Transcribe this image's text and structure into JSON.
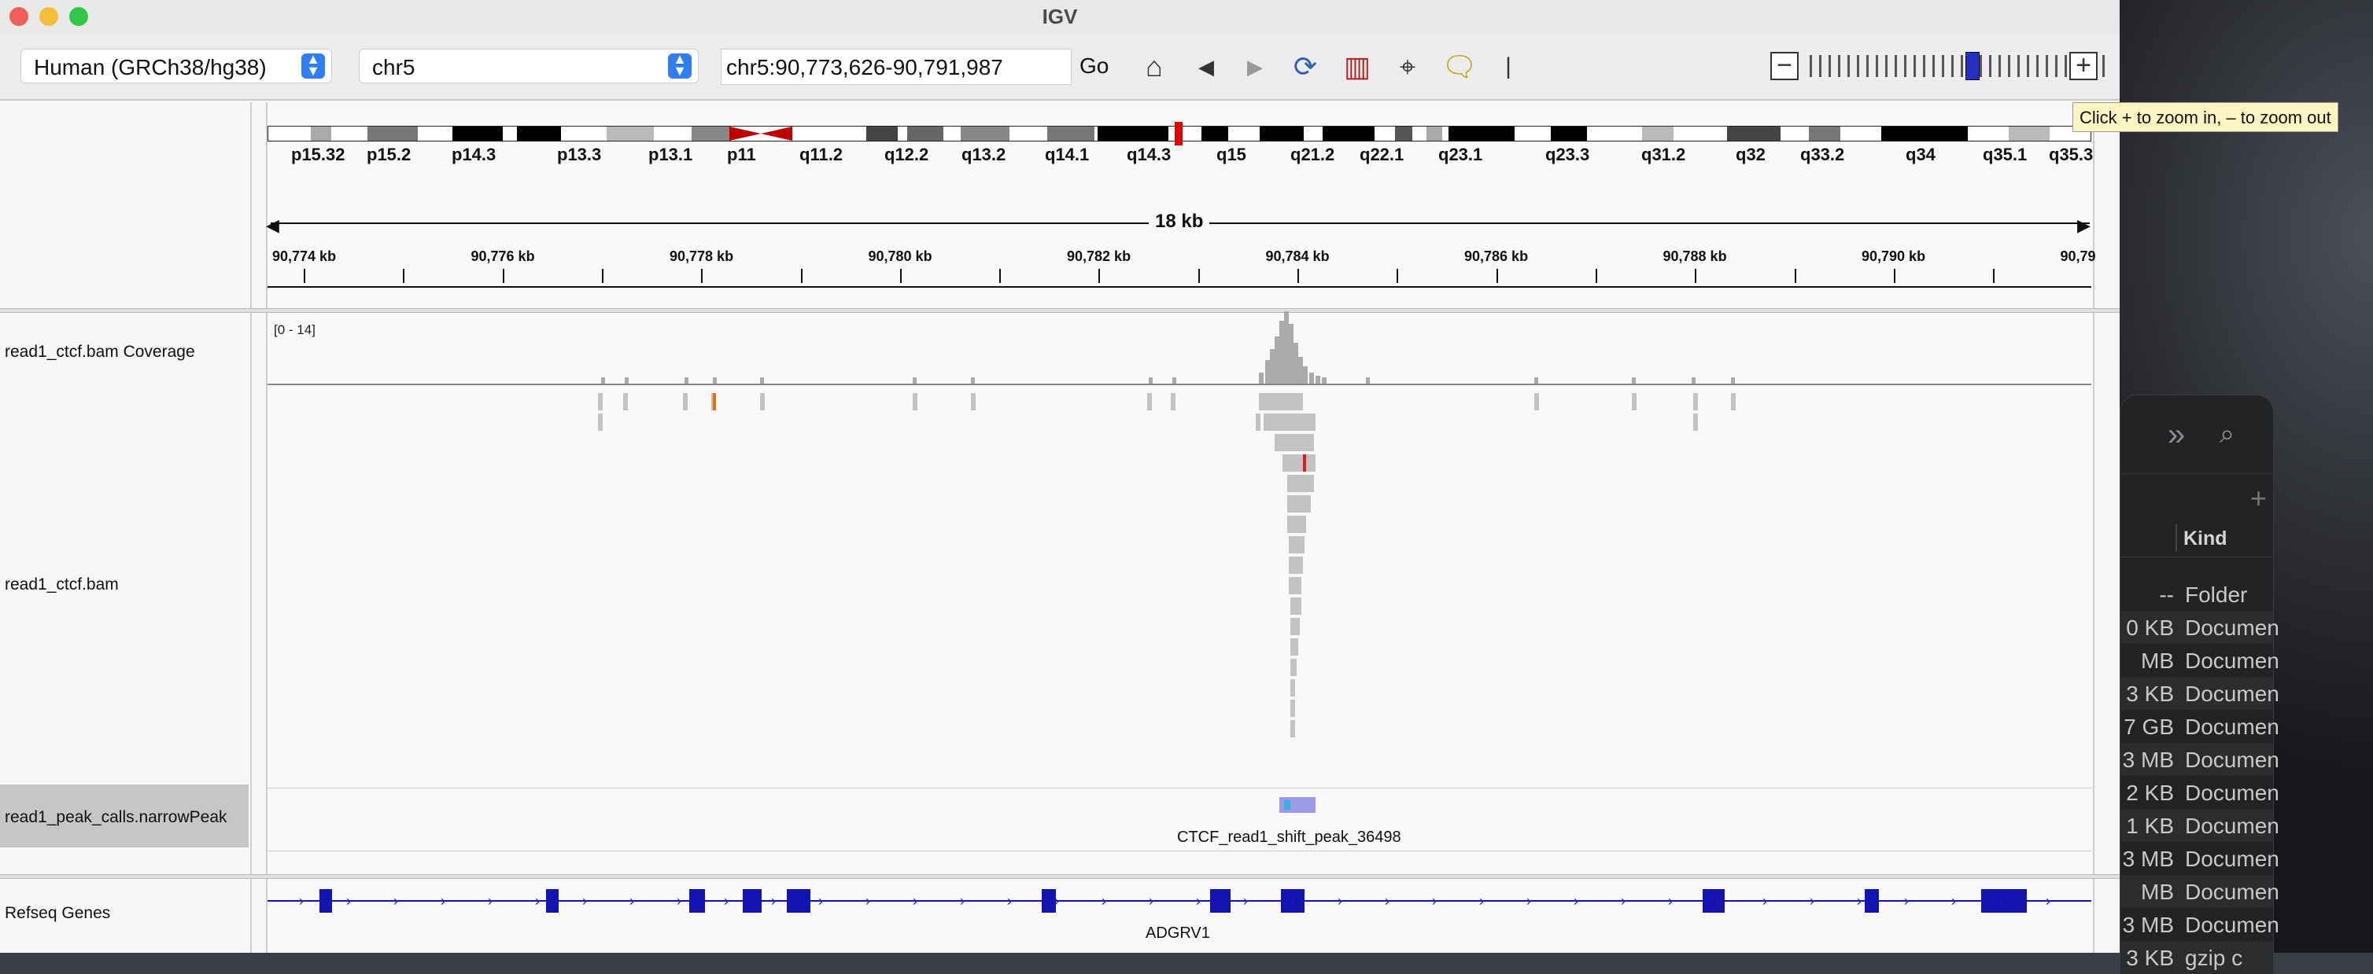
{
  "window": {
    "title": "IGV"
  },
  "toolbar": {
    "genome": "Human (GRCh38/hg38)",
    "chromosome": "chr5",
    "locus": "chr5:90,773,626-90,791,987",
    "go_label": "Go"
  },
  "tooltip": "Click + to zoom in,  – to zoom out",
  "zoom": {
    "level": 0.6
  },
  "ideogram": {
    "bands": [
      "p15.32",
      "p15.2",
      "p14.3",
      "p13.3",
      "p13.1",
      "p11",
      "q11.2",
      "q12.2",
      "q13.2",
      "q14.1",
      "q14.3",
      "q15",
      "q21.2",
      "q22.1",
      "q23.1",
      "q23.3",
      "q31.2",
      "q32",
      "q33.2",
      "q34",
      "q35.1",
      "q35.3"
    ]
  },
  "ruler": {
    "span": "18 kb",
    "ticks": [
      "90,774 kb",
      "90,776 kb",
      "90,778 kb",
      "90,780 kb",
      "90,782 kb",
      "90,784 kb",
      "90,786 kb",
      "90,788 kb",
      "90,790 kb",
      "90,79"
    ]
  },
  "tracks": {
    "coverage": {
      "name": "read1_ctcf.bam Coverage",
      "range": "[0 - 14]"
    },
    "alignments": {
      "name": "read1_ctcf.bam"
    },
    "peaks": {
      "name": "read1_peak_calls.narrowPeak",
      "feature": "CTCF_read1_shift_peak_36498"
    },
    "genes": {
      "name": "Refseq Genes",
      "gene": "ADGRV1"
    }
  },
  "colors": {
    "exon": "#1313b0",
    "peak": "#9a9ae6",
    "centromere": "#c00000"
  },
  "finder": {
    "header_kind": "Kind",
    "rows": [
      {
        "size": "--",
        "kind": "Folder"
      },
      {
        "size": "0 KB",
        "kind": "Documen"
      },
      {
        "size": "MB",
        "kind": "Documen"
      },
      {
        "size": "3 KB",
        "kind": "Documen"
      },
      {
        "size": "7 GB",
        "kind": "Documen"
      },
      {
        "size": "3 MB",
        "kind": "Documen"
      },
      {
        "size": "2 KB",
        "kind": "Documen"
      },
      {
        "size": "1 KB",
        "kind": "Documen"
      },
      {
        "size": "3 MB",
        "kind": "Documen"
      },
      {
        "size": "MB",
        "kind": "Documen"
      },
      {
        "size": "3 MB",
        "kind": "Documen"
      },
      {
        "size": "3 KB",
        "kind": "gzip c"
      }
    ]
  }
}
